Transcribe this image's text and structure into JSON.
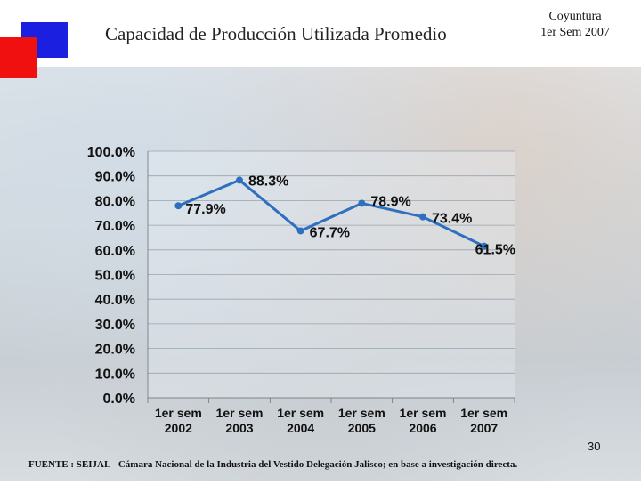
{
  "header": {
    "title": "Capacidad de Producción Utilizada Promedio",
    "period_line1": "Coyuntura",
    "period_line2": "1er Sem 2007"
  },
  "colors": {
    "accent_blue": "#1a1fe0",
    "accent_red": "#f01010",
    "series_line": "#2f6fc0",
    "axis_text": "#111111"
  },
  "chart_data": {
    "type": "line",
    "categories": [
      [
        "1er sem",
        "2002"
      ],
      [
        "1er sem",
        "2003"
      ],
      [
        "1er sem",
        "2004"
      ],
      [
        "1er sem",
        "2005"
      ],
      [
        "1er sem",
        "2006"
      ],
      [
        "1er sem",
        "2007"
      ]
    ],
    "series": [
      {
        "values": [
          77.9,
          88.3,
          67.7,
          78.9,
          73.4,
          61.5
        ],
        "labels": [
          "77.9%",
          "88.3%",
          "67.7%",
          "78.9%",
          "73.4%",
          "61.5%"
        ]
      }
    ],
    "yticks": [
      "0.0%",
      "10.0%",
      "20.0%",
      "30.0%",
      "40.0%",
      "50.0%",
      "60.0%",
      "70.0%",
      "80.0%",
      "90.0%",
      "100.0%"
    ],
    "ylim": [
      0,
      100
    ],
    "grid": true,
    "legend": "none"
  },
  "footer": {
    "page_number": "30",
    "source": "FUENTE : SEIJAL - Cámara Nacional de la Industria del Vestido Delegación Jalisco; en base a investigación directa."
  }
}
